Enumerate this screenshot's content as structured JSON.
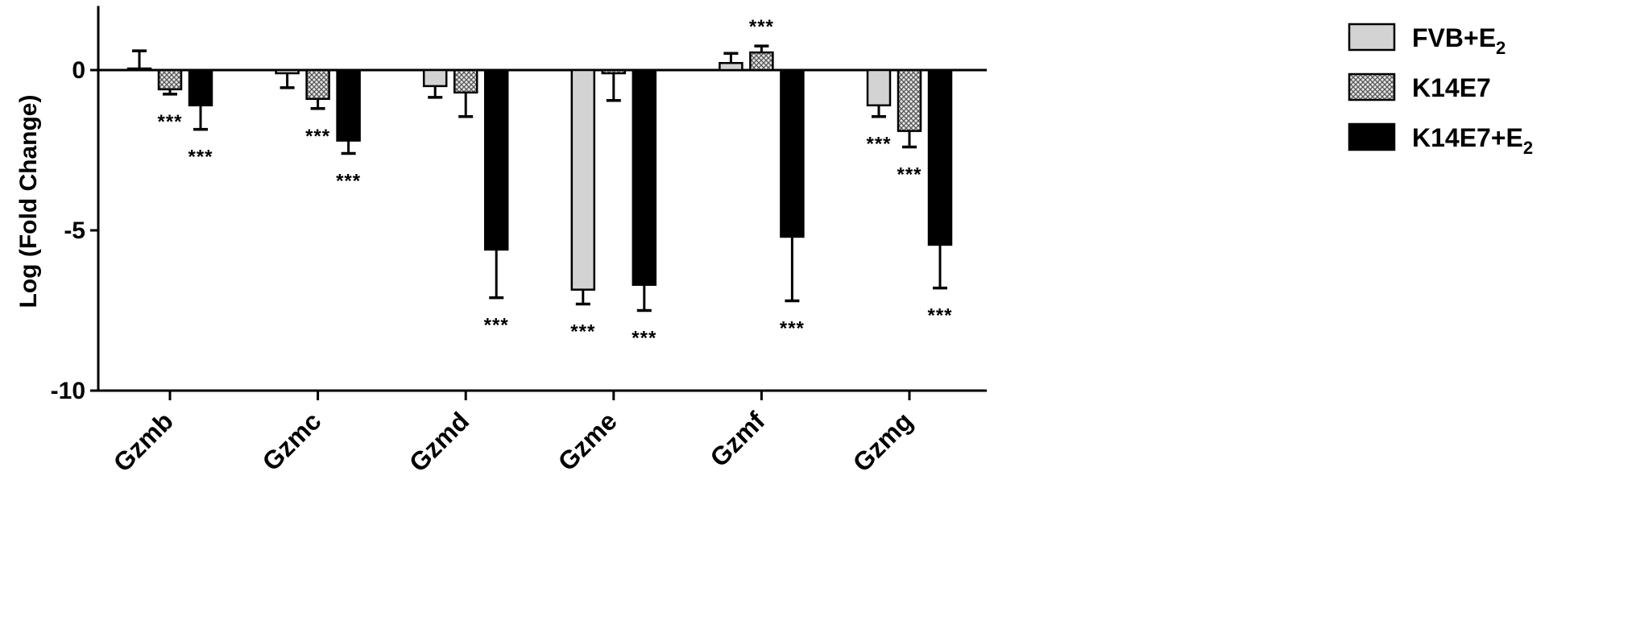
{
  "chart_data": {
    "type": "bar",
    "title": "",
    "xlabel": "",
    "ylabel": "Log (Fold Change)",
    "ylim": [
      -10,
      2
    ],
    "yticks": [
      0,
      -5,
      -10
    ],
    "ytick_labels": [
      "0",
      "-5",
      "-10"
    ],
    "grid": false,
    "legend_position": "right",
    "categories": [
      "Gzmb",
      "Gzmc",
      "Gzmd",
      "Gzme",
      "Gzmf",
      "Gzmg"
    ],
    "series": [
      {
        "name": "FVB+E2",
        "label_main": "FVB+E",
        "label_sub": "2",
        "fill": "#d3d3d3",
        "pattern": "solid-light",
        "values": [
          0.05,
          -0.1,
          -0.5,
          -6.85,
          0.22,
          -1.1
        ],
        "error": [
          0.55,
          0.45,
          0.35,
          0.45,
          0.3,
          0.35
        ],
        "error_dir": [
          1,
          -1,
          -1,
          -1,
          1,
          -1
        ],
        "significance": [
          "",
          "",
          "",
          "***",
          "",
          "***"
        ]
      },
      {
        "name": "K14E7",
        "label_main": "K14E7",
        "label_sub": "",
        "fill": "#a9a9a9",
        "pattern": "crosshatch",
        "values": [
          -0.6,
          -0.9,
          -0.7,
          -0.1,
          0.55,
          -1.9
        ],
        "error": [
          0.15,
          0.3,
          0.75,
          0.85,
          0.2,
          0.5
        ],
        "error_dir": [
          -1,
          -1,
          -1,
          -1,
          1,
          -1
        ],
        "significance": [
          "***",
          "***",
          "",
          "",
          "***",
          "***"
        ]
      },
      {
        "name": "K14E7+E2",
        "label_main": "K14E7+E",
        "label_sub": "2",
        "fill": "#000000",
        "pattern": "solid-dark",
        "values": [
          -1.1,
          -2.2,
          -5.6,
          -6.7,
          -5.2,
          -5.45
        ],
        "error": [
          0.75,
          0.4,
          1.5,
          0.8,
          2.0,
          1.35
        ],
        "error_dir": [
          -1,
          -1,
          -1,
          -1,
          -1,
          -1
        ],
        "significance": [
          "***",
          "***",
          "***",
          "***",
          "***",
          "***"
        ]
      }
    ]
  }
}
